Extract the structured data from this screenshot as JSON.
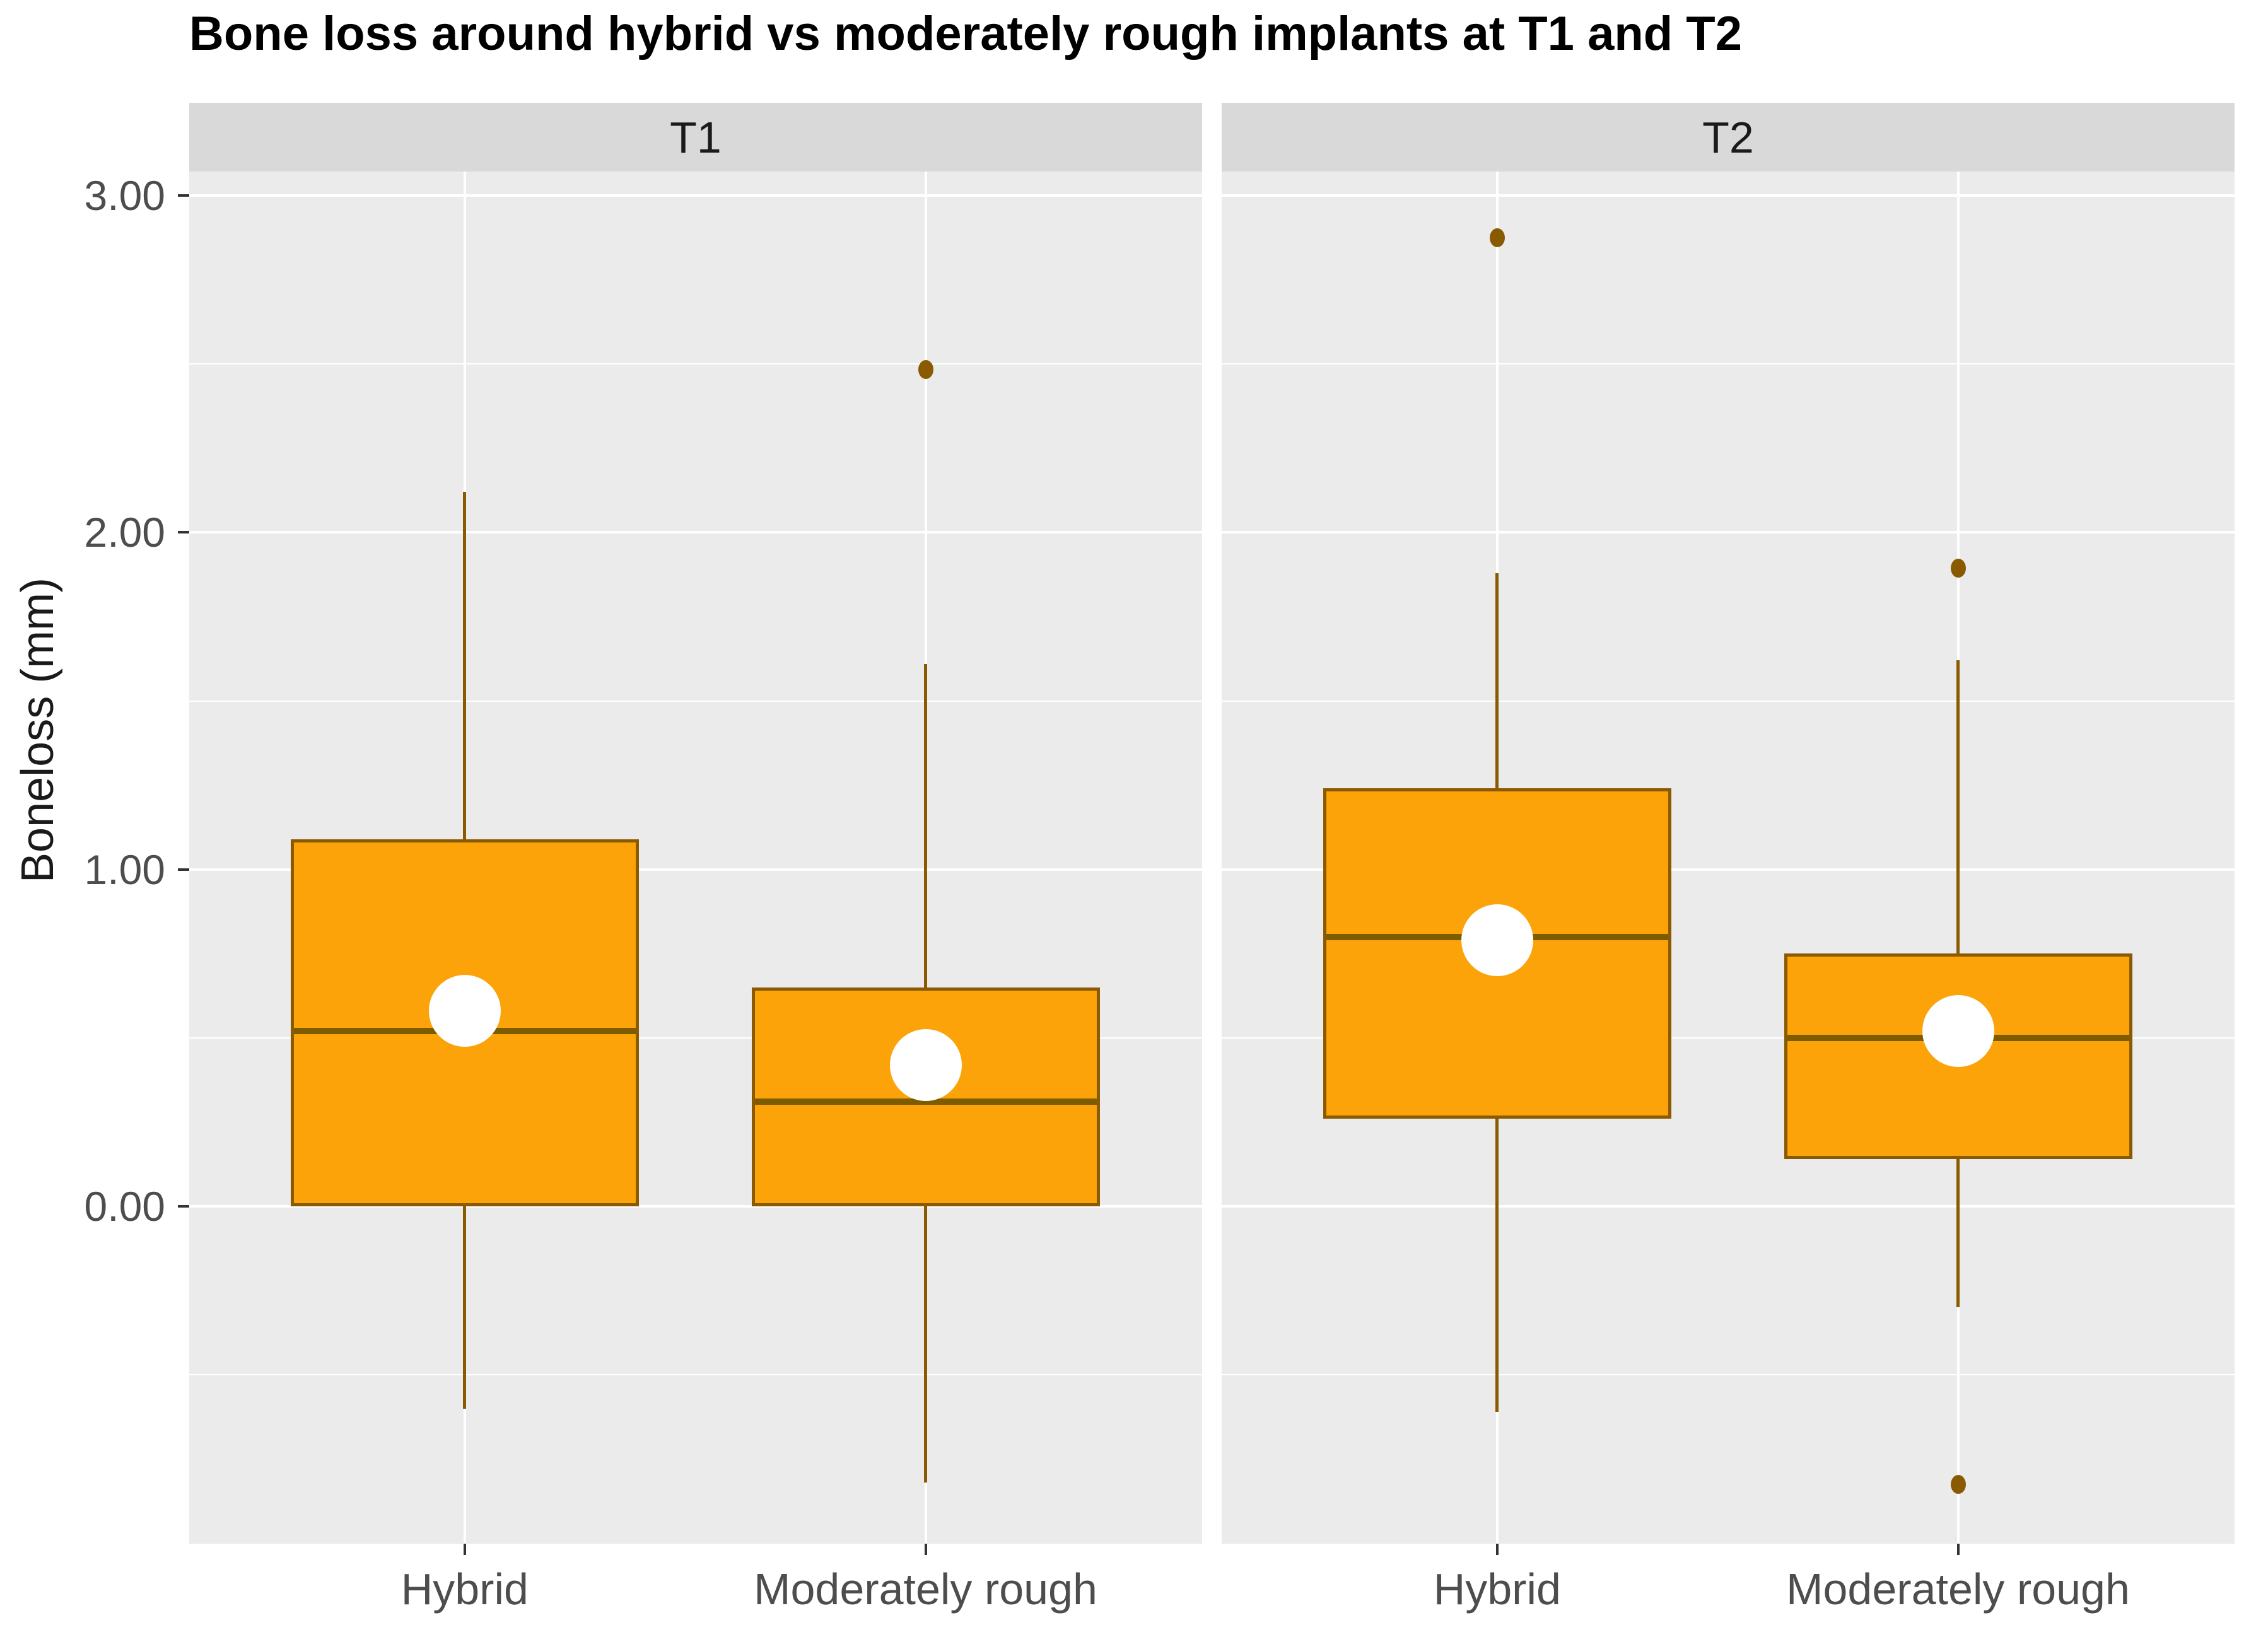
{
  "chart_data": {
    "type": "boxplot",
    "title": "Bone loss around hybrid vs moderately rough implants at T1 and T2",
    "ylabel": "Boneloss (mm)",
    "xlabel": "",
    "legend": "none",
    "grid": "on",
    "facets": [
      {
        "label": "T1",
        "boxes": [
          {
            "category": "Hybrid",
            "whisker_low": -0.6,
            "q1": 0.0,
            "median": 0.52,
            "q3": 1.09,
            "whisker_high": 2.12,
            "mean": 0.58,
            "outliers": []
          },
          {
            "category": "Moderately rough",
            "whisker_low": -0.82,
            "q1": 0.0,
            "median": 0.31,
            "q3": 0.65,
            "whisker_high": 1.61,
            "mean": 0.42,
            "outliers": [
              2.49
            ]
          }
        ]
      },
      {
        "label": "T2",
        "boxes": [
          {
            "category": "Hybrid",
            "whisker_low": -0.61,
            "q1": 0.26,
            "median": 0.8,
            "q3": 1.24,
            "whisker_high": 1.88,
            "mean": 0.79,
            "outliers": [
              2.88
            ]
          },
          {
            "category": "Moderately rough",
            "whisker_low": -0.3,
            "q1": 0.14,
            "median": 0.5,
            "q3": 0.75,
            "whisker_high": 1.62,
            "mean": 0.52,
            "outliers": [
              1.9,
              -0.82
            ]
          }
        ]
      }
    ],
    "x_categories": [
      "Hybrid",
      "Moderately rough"
    ],
    "y_axis": {
      "label": "Boneloss (mm)",
      "tick_labels": [
        "0.00",
        "1.00",
        "2.00",
        "3.00"
      ],
      "tick_values": [
        0,
        1,
        2,
        3
      ],
      "minor_values": [
        -0.5,
        0.5,
        1.5,
        2.5
      ],
      "domain": [
        -1.0,
        3.07
      ]
    },
    "colors": {
      "box_fill": "#fba309",
      "box_stroke": "#8a5a00",
      "median": "#7d5c00",
      "mean_dot": "#ffffff",
      "outlier": "#8a5a00",
      "panel_bg": "#ebebeb",
      "strip_bg": "#d9d9d9",
      "gridline": "#ffffff",
      "axis_text": "#4d4d4d",
      "strip_text": "#1a1a1a",
      "title_text": "#000000"
    }
  }
}
